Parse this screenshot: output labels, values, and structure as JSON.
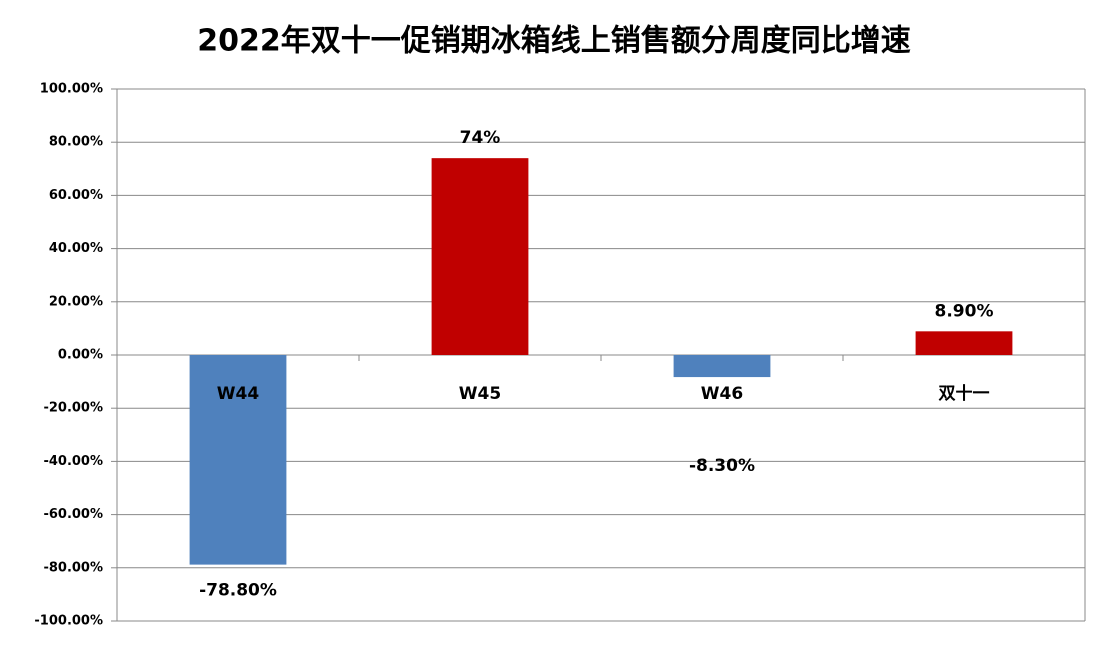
{
  "chart_data": {
    "type": "bar",
    "title": "2022年双十一促销期冰箱线上销售额分周度同比增速",
    "categories": [
      "W44",
      "W45",
      "W46",
      "双十一"
    ],
    "values": [
      -78.8,
      74,
      -8.3,
      8.9
    ],
    "value_labels": [
      "-78.80%",
      "74%",
      "-8.30%",
      "8.90%"
    ],
    "colors": [
      "#4f81bd",
      "#c00000",
      "#4f81bd",
      "#c00000"
    ],
    "ylim": [
      -100,
      100
    ],
    "yticks": [
      {
        "value": 100,
        "label": "100.00%"
      },
      {
        "value": 80,
        "label": "80.00%"
      },
      {
        "value": 60,
        "label": "60.00%"
      },
      {
        "value": 40,
        "label": "40.00%"
      },
      {
        "value": 20,
        "label": "20.00%"
      },
      {
        "value": 0,
        "label": "0.00%"
      },
      {
        "value": -20,
        "label": "-20.00%"
      },
      {
        "value": -40,
        "label": "-40.00%"
      },
      {
        "value": -60,
        "label": "-60.00%"
      },
      {
        "value": -80,
        "label": "-80.00%"
      },
      {
        "value": -100,
        "label": "-100.00%"
      }
    ],
    "grid": true
  }
}
